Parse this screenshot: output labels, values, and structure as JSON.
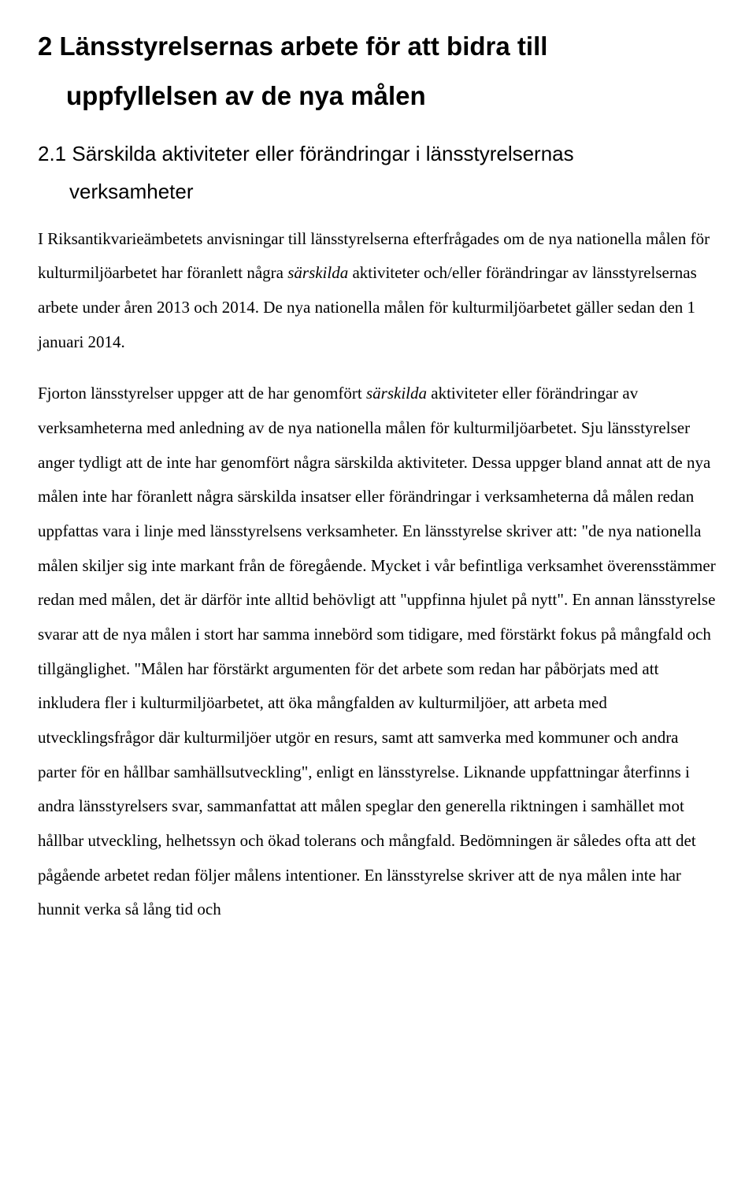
{
  "h1": {
    "line1": "2  Länsstyrelsernas arbete för att bidra till",
    "line2": "uppfyllelsen av de nya målen"
  },
  "h2": {
    "line1": "2.1 Särskilda aktiviteter eller förändringar i länsstyrelsernas",
    "line2": "verksamheter"
  },
  "p1": {
    "seg1": "I Riksantikvarieämbetets anvisningar till länsstyrelserna efterfrågades om de nya nationella målen för kulturmiljöarbetet har föranlett några ",
    "italic1": "särskilda",
    "seg2": " aktiviteter och/eller förändringar av länsstyrelsernas arbete under åren 2013 och 2014. De nya nationella målen för kulturmiljöarbetet gäller sedan den 1 januari 2014."
  },
  "p2": {
    "seg1": "Fjorton länsstyrelser uppger att de har genomfört ",
    "italic1": "särskilda",
    "seg2": " aktiviteter eller förändringar av verksamheterna med anledning av de nya nationella målen för kulturmiljöarbetet. Sju länsstyrelser anger tydligt att de inte har genomfört några särskilda aktiviteter. Dessa uppger bland annat att de nya målen inte har föranlett några särskilda insatser eller förändringar i verksamheterna då målen redan uppfattas vara i linje med länsstyrelsens verksamheter. En länsstyrelse skriver att: \"de nya nationella målen skiljer sig inte markant från de föregående. Mycket i vår befintliga verksamhet överensstämmer redan med målen, det är därför inte alltid behövligt att \"uppfinna hjulet på nytt\". En annan länsstyrelse svarar att de nya målen i stort har samma innebörd som tidigare, med förstärkt fokus på mångfald och tillgänglighet. \"Målen har förstärkt argumenten för det arbete som redan har påbörjats med att inkludera fler i kulturmiljöarbetet, att öka mångfalden av kulturmiljöer, att arbeta med utvecklingsfrågor där kulturmiljöer utgör en resurs, samt att samverka med kommuner och andra parter för en hållbar samhällsutveckling\", enligt en länsstyrelse. Liknande uppfattningar återfinns i andra länsstyrelsers svar, sammanfattat att målen speglar den generella riktningen i samhället mot hållbar utveckling, helhetssyn och ökad tolerans och mångfald. Bedömningen är således ofta att det pågående arbetet redan följer målens intentioner. En länsstyrelse skriver att de nya målen inte har hunnit verka så lång tid och"
  }
}
